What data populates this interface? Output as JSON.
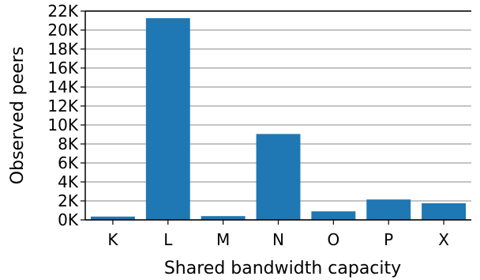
{
  "chart_data": {
    "type": "bar",
    "categories": [
      "K",
      "L",
      "M",
      "N",
      "O",
      "P",
      "X"
    ],
    "values": [
      350,
      21250,
      400,
      9050,
      900,
      2150,
      1750
    ],
    "xlabel": "Shared bandwidth capacity",
    "ylabel": "Observed peers",
    "ylim": [
      0,
      22000
    ],
    "yticks": [
      0,
      2000,
      4000,
      6000,
      8000,
      10000,
      12000,
      14000,
      16000,
      18000,
      20000,
      22000
    ],
    "ytick_labels": [
      "0K",
      "2K",
      "4K",
      "6K",
      "8K",
      "10K",
      "12K",
      "14K",
      "16K",
      "18K",
      "20K",
      "22K"
    ],
    "grid": "horizontal",
    "bar_color": "#1f77b4"
  }
}
